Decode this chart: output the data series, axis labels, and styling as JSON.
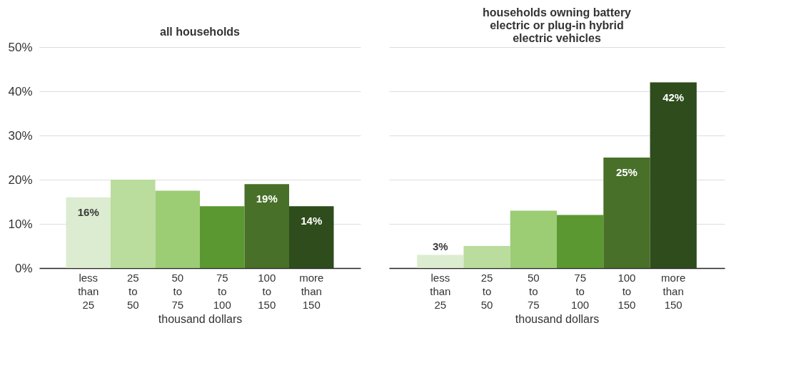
{
  "chart_data": [
    {
      "type": "bar",
      "title": "all households",
      "xlabel": "thousand dollars",
      "categories": [
        "less than 25",
        "25 to 50",
        "50 to 75",
        "75 to 100",
        "100 to 150",
        "more than 150"
      ],
      "values": [
        16,
        20,
        17.5,
        14,
        19,
        14
      ],
      "value_labels": [
        "16%",
        null,
        null,
        null,
        "19%",
        "14%"
      ],
      "colors": [
        "#dcecd0",
        "#badc9c",
        "#9ccc74",
        "#5c9832",
        "#487028",
        "#2e4c1c"
      ],
      "ylim": [
        0,
        50
      ],
      "yticks": [
        {
          "value": 0,
          "label": "0%"
        },
        {
          "value": 10,
          "label": "10%"
        },
        {
          "value": 20,
          "label": "20%"
        },
        {
          "value": 30,
          "label": "30%"
        },
        {
          "value": 40,
          "label": "40%"
        },
        {
          "value": 50,
          "label": "50%"
        }
      ],
      "grid": "y"
    },
    {
      "type": "bar",
      "title": "households owning battery electric or plug-in hybrid electric vehicles",
      "xlabel": "thousand dollars",
      "categories": [
        "less than 25",
        "25 to 50",
        "50 to 75",
        "75 to 100",
        "100 to 150",
        "more than 150"
      ],
      "values": [
        3,
        5,
        13,
        12,
        25,
        42
      ],
      "value_labels": [
        "3%",
        null,
        null,
        null,
        "25%",
        "42%"
      ],
      "colors": [
        "#dcecd0",
        "#badc9c",
        "#9ccc74",
        "#5c9832",
        "#487028",
        "#2e4c1c"
      ],
      "ylim": [
        0,
        50
      ],
      "yticks": [
        0,
        10,
        20,
        30,
        40,
        50
      ],
      "grid": "y",
      "tick_labels": "x"
    }
  ]
}
